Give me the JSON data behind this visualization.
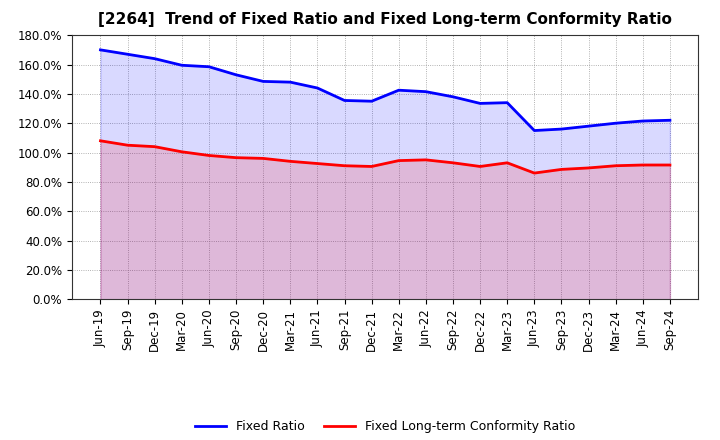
{
  "title": "[2264]  Trend of Fixed Ratio and Fixed Long-term Conformity Ratio",
  "x_labels": [
    "Jun-19",
    "Sep-19",
    "Dec-19",
    "Mar-20",
    "Jun-20",
    "Sep-20",
    "Dec-20",
    "Mar-21",
    "Jun-21",
    "Sep-21",
    "Dec-21",
    "Mar-22",
    "Jun-22",
    "Sep-22",
    "Dec-22",
    "Mar-23",
    "Jun-23",
    "Sep-23",
    "Dec-23",
    "Mar-24",
    "Jun-24",
    "Sep-24"
  ],
  "fixed_ratio": [
    170.0,
    167.0,
    164.0,
    159.5,
    158.5,
    153.0,
    148.5,
    148.0,
    144.0,
    135.5,
    135.0,
    142.5,
    141.5,
    138.0,
    133.5,
    134.0,
    115.0,
    116.0,
    118.0,
    120.0,
    121.5,
    122.0
  ],
  "fixed_lt_ratio": [
    108.0,
    105.0,
    104.0,
    100.5,
    98.0,
    96.5,
    96.0,
    94.0,
    92.5,
    91.0,
    90.5,
    94.5,
    95.0,
    93.0,
    90.5,
    93.0,
    86.0,
    88.5,
    89.5,
    91.0,
    91.5,
    91.5
  ],
  "fixed_ratio_color": "#0000FF",
  "fixed_lt_ratio_color": "#FF0000",
  "fixed_ratio_fill": "#CCCCFF",
  "fixed_lt_ratio_fill": "#FFCCCC",
  "ylim": [
    0,
    180
  ],
  "yticks": [
    0,
    20,
    40,
    60,
    80,
    100,
    120,
    140,
    160,
    180
  ],
  "background_color": "#FFFFFF",
  "plot_bg_color": "#FFFFFF",
  "grid_color": "#999999",
  "legend_fixed": "Fixed Ratio",
  "legend_fixed_lt": "Fixed Long-term Conformity Ratio",
  "title_fontsize": 11,
  "tick_fontsize": 8.5,
  "legend_fontsize": 9
}
